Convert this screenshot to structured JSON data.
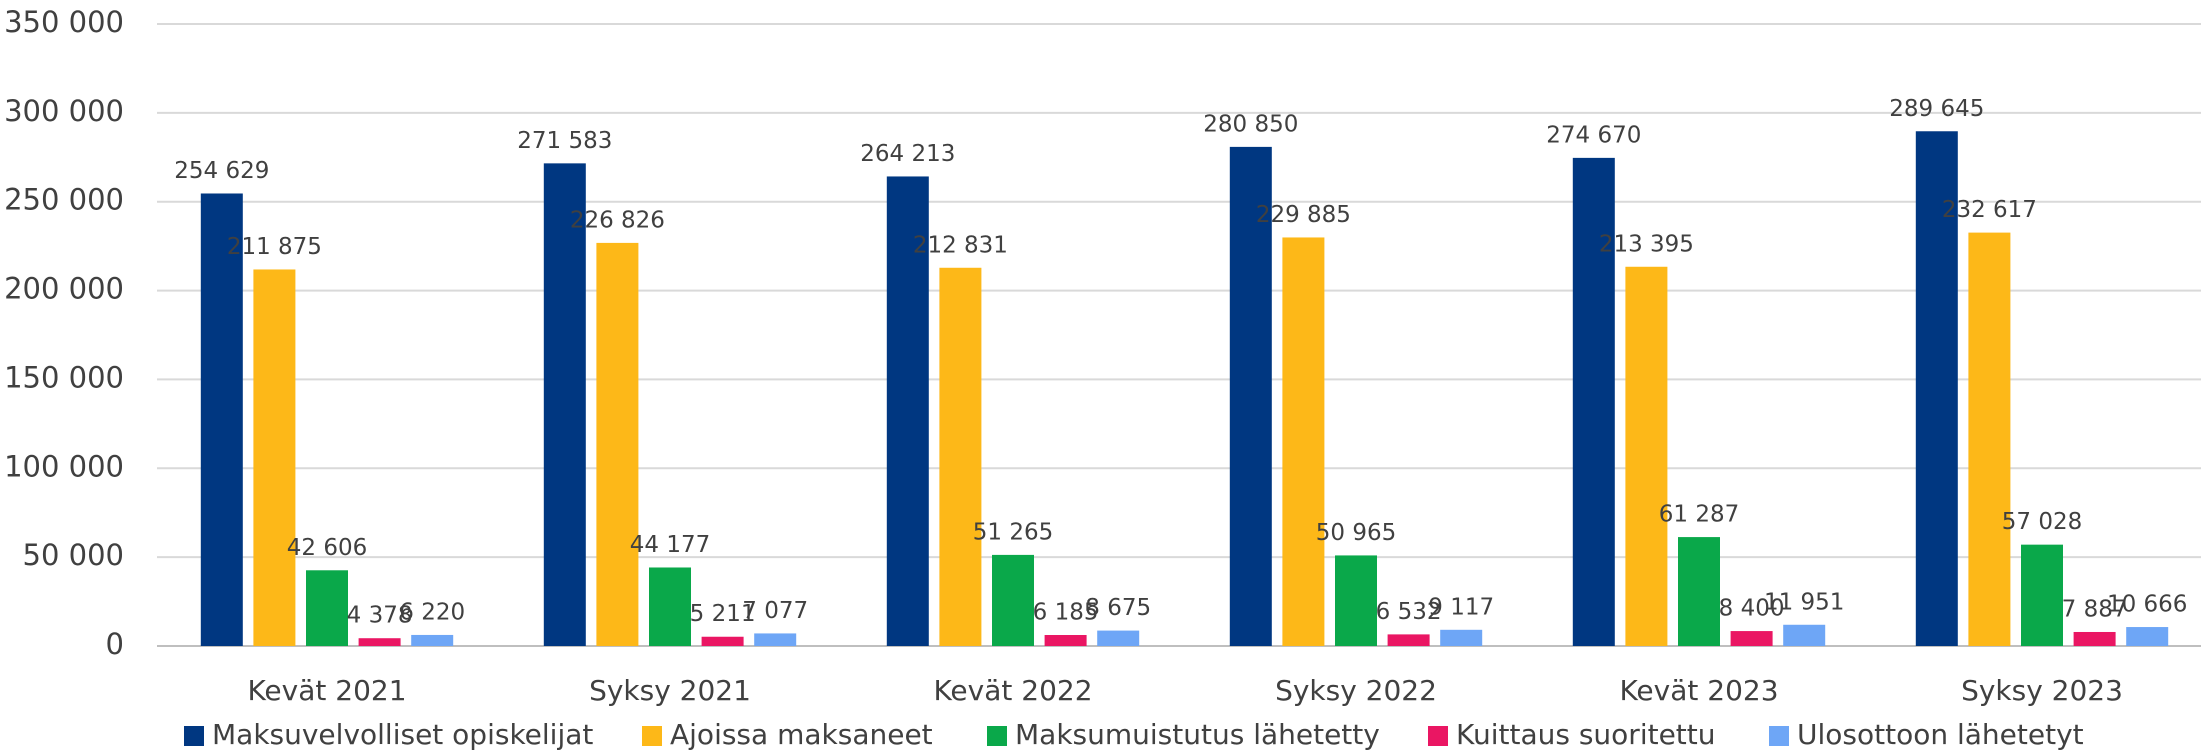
{
  "chart_data": {
    "type": "bar",
    "categories": [
      "Kevät 2021",
      "Syksy 2021",
      "Kevät 2022",
      "Syksy 2022",
      "Kevät 2023",
      "Syksy 2023"
    ],
    "series": [
      {
        "name": "Maksuvelvolliset opiskelijat",
        "color": "#003781",
        "values": [
          254629,
          271583,
          264213,
          280850,
          274670,
          289645
        ],
        "value_labels": [
          "254 629",
          "271 583",
          "264 213",
          "280 850",
          "274 670",
          "289 645"
        ]
      },
      {
        "name": "Ajoissa maksaneet",
        "color": "#fdb818",
        "values": [
          211875,
          226826,
          212831,
          229885,
          213395,
          232617
        ],
        "value_labels": [
          "211 875",
          "226 826",
          "212 831",
          "229 885",
          "213 395",
          "232 617"
        ]
      },
      {
        "name": "Maksumuistutus lähetetty",
        "color": "#0aa84a",
        "values": [
          42606,
          44177,
          51265,
          50965,
          61287,
          57028
        ],
        "value_labels": [
          "42 606",
          "44 177",
          "51 265",
          "50 965",
          "61 287",
          "57 028"
        ]
      },
      {
        "name": "Kuittaus suoritettu",
        "color": "#ea1663",
        "values": [
          4378,
          5211,
          6185,
          6532,
          8400,
          7887
        ],
        "value_labels": [
          "4 378",
          "5 211",
          "6 185",
          "6 532",
          "8 400",
          "7 887"
        ]
      },
      {
        "name": "Ulosottoon lähetetyt",
        "color": "#6ea6f6",
        "values": [
          6220,
          7077,
          8675,
          9117,
          11951,
          10666
        ],
        "value_labels": [
          "6 220",
          "7 077",
          "8 675",
          "9 117",
          "11 951",
          "10 666"
        ]
      }
    ],
    "ylim": [
      0,
      350000
    ],
    "yticks": [
      {
        "value": 0,
        "label": "0"
      },
      {
        "value": 50000,
        "label": "50 000"
      },
      {
        "value": 100000,
        "label": "100 000"
      },
      {
        "value": 150000,
        "label": "150 000"
      },
      {
        "value": 200000,
        "label": "200 000"
      },
      {
        "value": 250000,
        "label": "250 000"
      },
      {
        "value": 300000,
        "label": "300 000"
      },
      {
        "value": 350000,
        "label": "350 000"
      }
    ],
    "grid": true,
    "legend": "bottom"
  }
}
